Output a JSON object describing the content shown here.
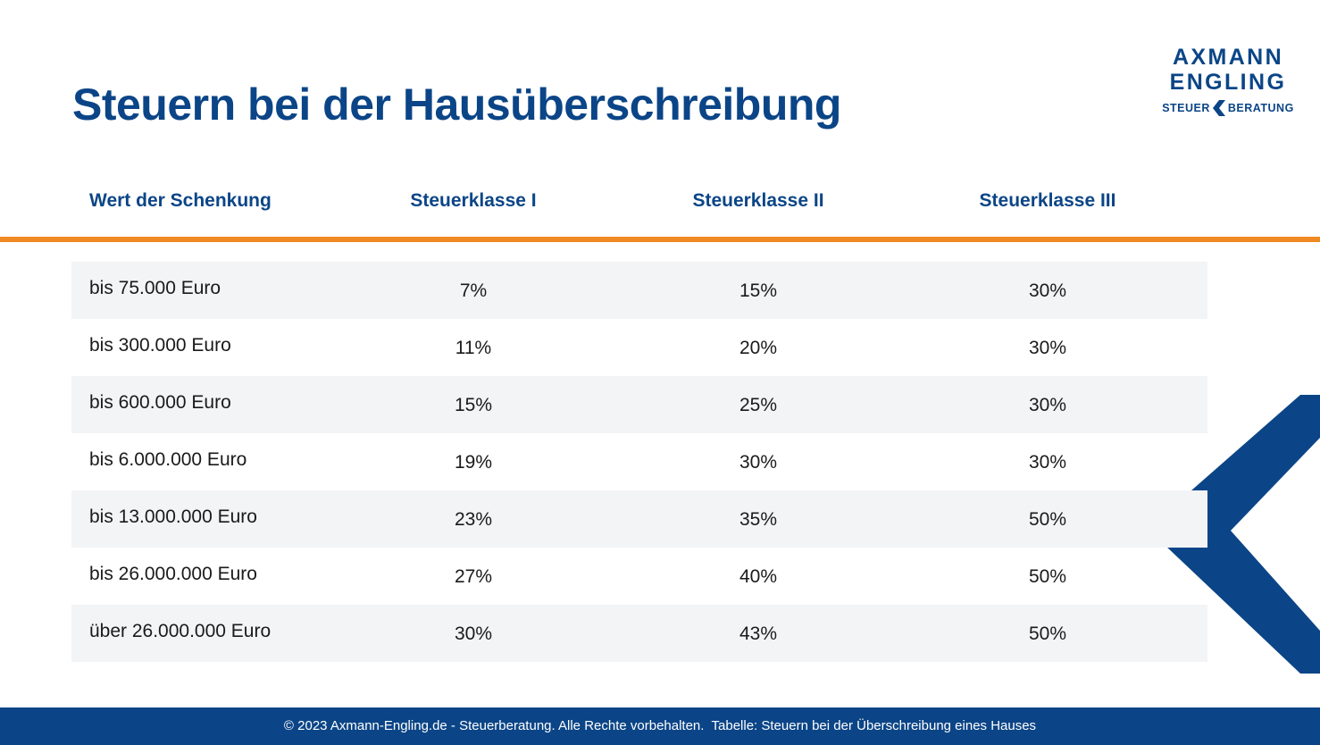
{
  "title": "Steuern bei der Hausüberschreibung",
  "logo": {
    "line1": "AXMANN",
    "line2": "ENGLING",
    "sub_left": "STEUER",
    "sub_right": "BERATUNG",
    "icon": "chevron-left-icon"
  },
  "colors": {
    "brand_blue": "#0b4587",
    "accent_orange": "#f08a24",
    "row_shade": "#f3f4f6"
  },
  "table": {
    "headers": [
      "Wert der Schenkung",
      "Steuerklasse I",
      "Steuerklasse II",
      "Steuerklasse III"
    ],
    "rows": [
      [
        "bis 75.000 Euro",
        "7%",
        "15%",
        "30%"
      ],
      [
        "bis 300.000 Euro",
        "11%",
        "20%",
        "30%"
      ],
      [
        "bis 600.000 Euro",
        "15%",
        "25%",
        "30%"
      ],
      [
        "bis 6.000.000 Euro",
        "19%",
        "30%",
        "30%"
      ],
      [
        "bis 13.000.000 Euro",
        "23%",
        "35%",
        "50%"
      ],
      [
        "bis 26.000.000 Euro",
        "27%",
        "40%",
        "50%"
      ],
      [
        "über 26.000.000 Euro",
        "30%",
        "43%",
        "50%"
      ]
    ]
  },
  "footer": "© 2023 Axmann-Engling.de - Steuerberatung. Alle Rechte vorbehalten.  Tabelle: Steuern bei der Überschreibung eines Hauses"
}
